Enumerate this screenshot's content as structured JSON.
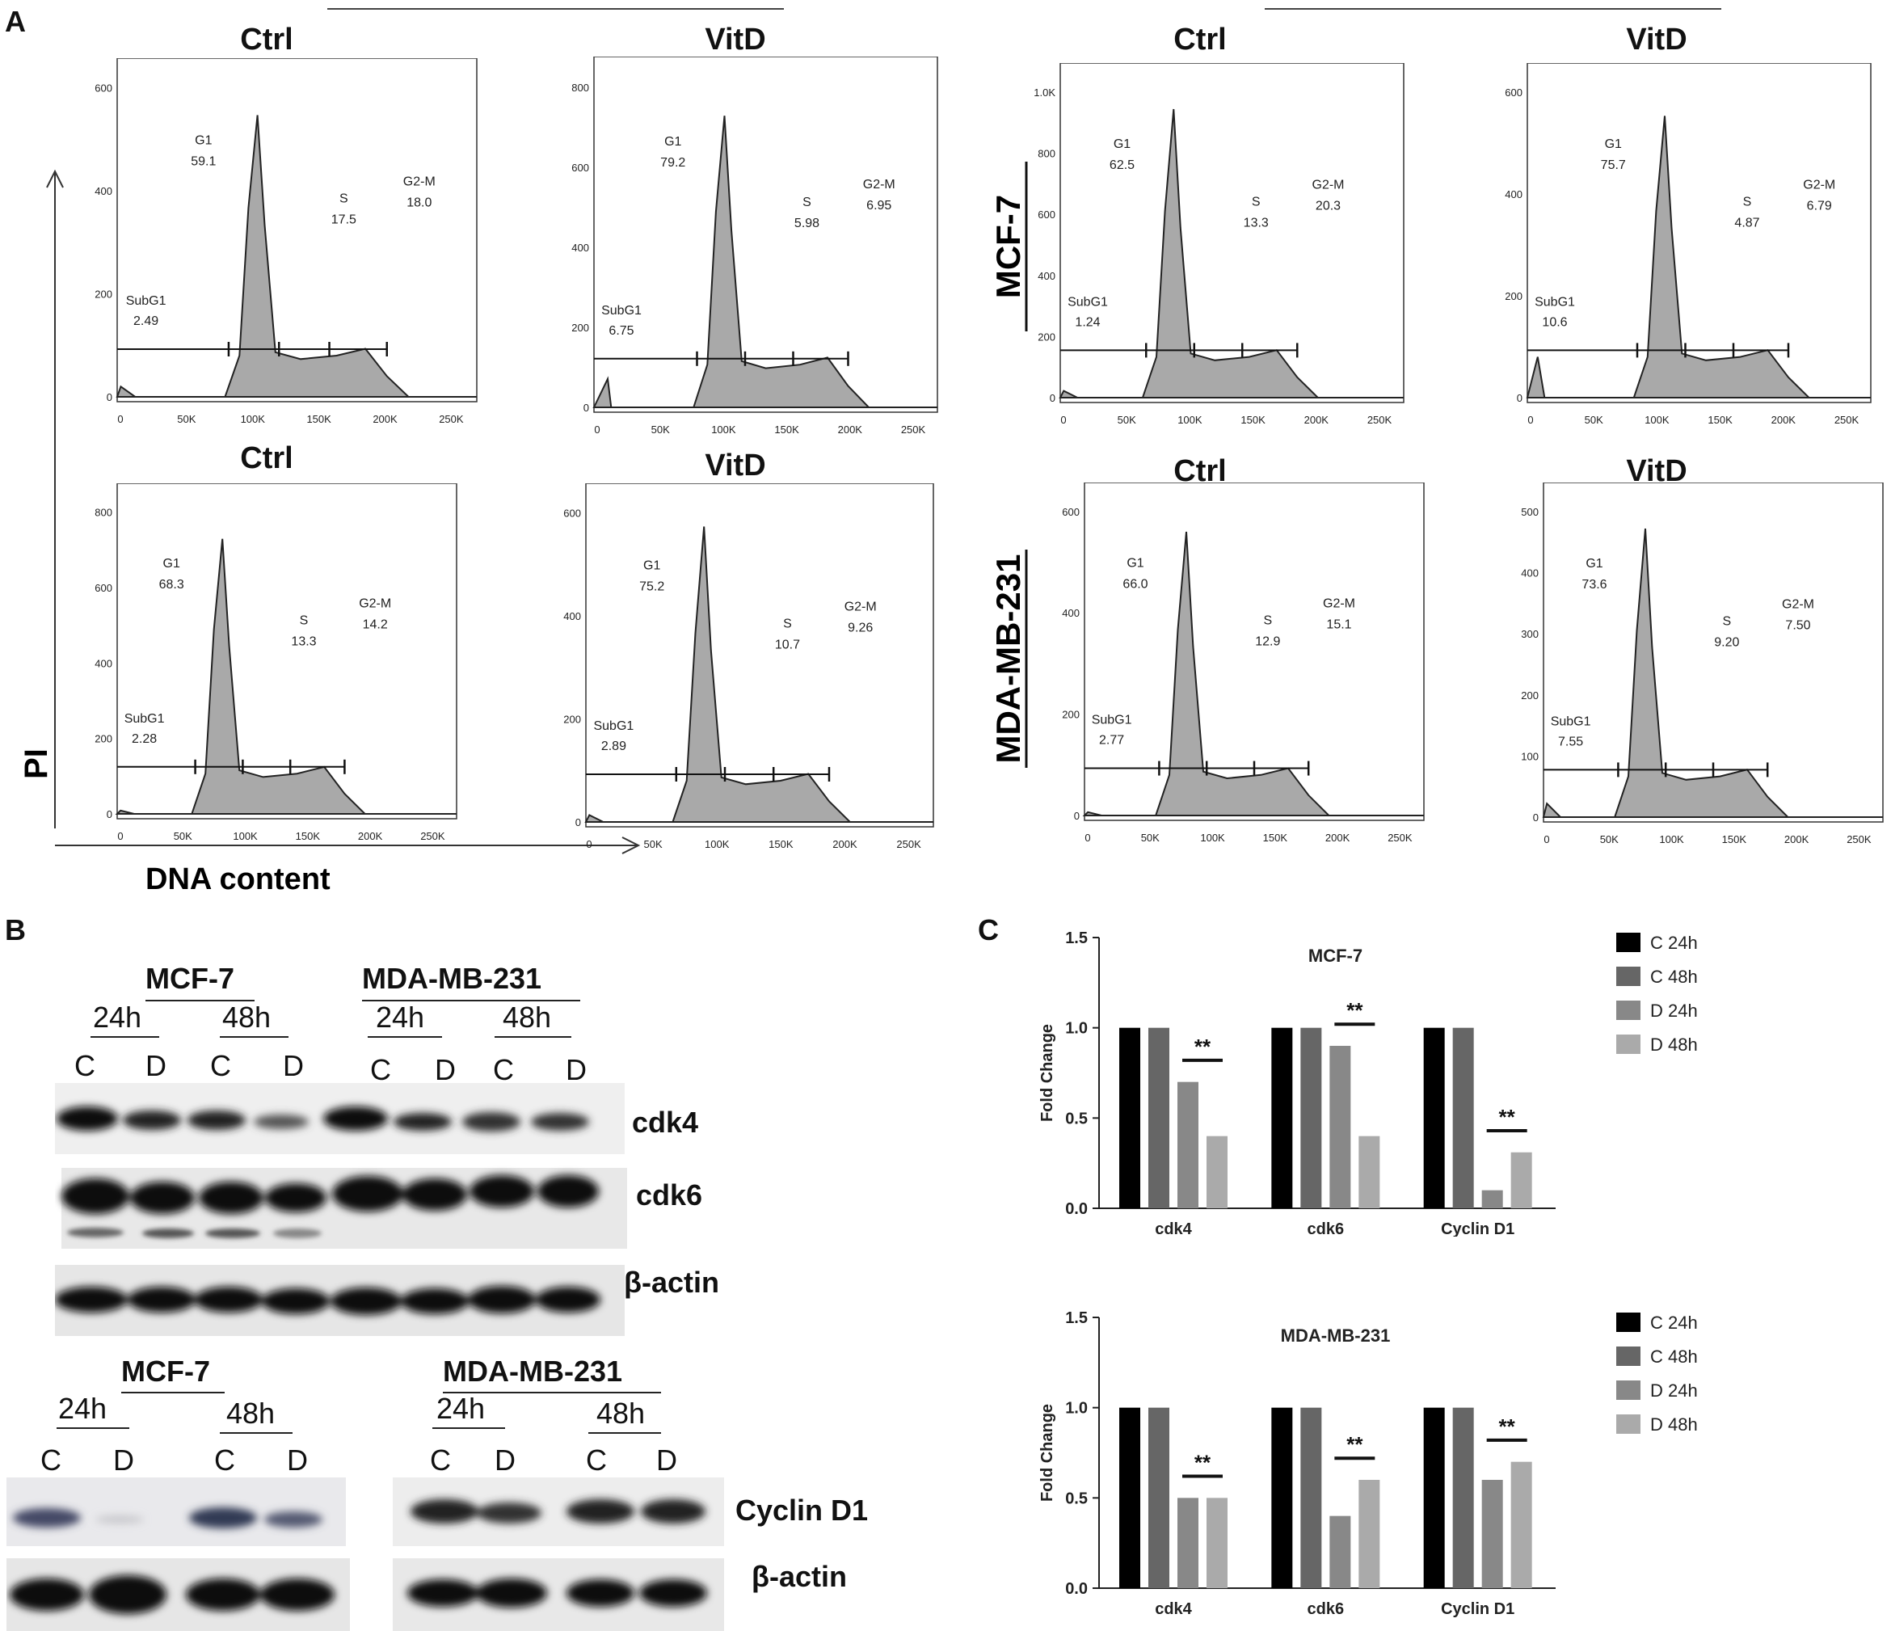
{
  "panel_labels": {
    "a": "A",
    "b": "B",
    "c": "C"
  },
  "histogram_axes": {
    "y_label": "PI",
    "x_label": "DNA content"
  },
  "row_labels": {
    "top": "MCF-7",
    "bottom": "MDA-MB-231"
  },
  "histograms": [
    {
      "title": "Ctrl",
      "yticks": [
        "0",
        "200",
        "400",
        "600"
      ],
      "subg1": "2.49",
      "g1": "59.1",
      "s": "17.5",
      "g2m": "18.0"
    },
    {
      "title": "VitD",
      "yticks": [
        "0",
        "200",
        "400",
        "600",
        "800"
      ],
      "subg1": "6.75",
      "g1": "79.2",
      "s": "5.98",
      "g2m": "6.95"
    },
    {
      "title": "Ctrl",
      "yticks": [
        "0",
        "200",
        "400",
        "600",
        "800",
        "1.0K"
      ],
      "subg1": "1.24",
      "g1": "62.5",
      "s": "13.3",
      "g2m": "20.3"
    },
    {
      "title": "VitD",
      "yticks": [
        "0",
        "200",
        "400",
        "600"
      ],
      "subg1": "10.6",
      "g1": "75.7",
      "s": "4.87",
      "g2m": "6.79"
    },
    {
      "title": "Ctrl",
      "yticks": [
        "0",
        "200",
        "400",
        "600",
        "800"
      ],
      "subg1": "2.28",
      "g1": "68.3",
      "s": "13.3",
      "g2m": "14.2"
    },
    {
      "title": "VitD",
      "yticks": [
        "0",
        "200",
        "400",
        "600"
      ],
      "subg1": "2.89",
      "g1": "75.2",
      "s": "10.7",
      "g2m": "9.26"
    },
    {
      "title": "Ctrl",
      "yticks": [
        "0",
        "200",
        "400",
        "600"
      ],
      "subg1": "2.77",
      "g1": "66.0",
      "s": "12.9",
      "g2m": "15.1"
    },
    {
      "title": "VitD",
      "yticks": [
        "0",
        "100",
        "200",
        "300",
        "400",
        "500"
      ],
      "subg1": "7.55",
      "g1": "73.6",
      "s": "9.20",
      "g2m": "7.50"
    }
  ],
  "histo_xticks": [
    "0",
    "50K",
    "100K",
    "150K",
    "200K",
    "250K"
  ],
  "gate_labels": {
    "subg1": "SubG1",
    "g1": "G1",
    "s": "S",
    "g2m": "G2-M"
  },
  "blots": {
    "top": {
      "group1": "MCF-7",
      "group2": "MDA-MB-231",
      "times": [
        "24h",
        "48h",
        "24h",
        "48h"
      ],
      "lanes": [
        "C",
        "D",
        "C",
        "D",
        "C",
        "D",
        "C",
        "D"
      ],
      "proteins": [
        "cdk4",
        "cdk6",
        "β-actin"
      ]
    },
    "bottom": {
      "group1": "MCF-7",
      "group2": "MDA-MB-231",
      "times": [
        "24h",
        "48h",
        "24h",
        "48h"
      ],
      "lanes": [
        "C",
        "D",
        "C",
        "D",
        "C",
        "D",
        "C",
        "D"
      ],
      "proteins": [
        "Cyclin D1",
        "β-actin"
      ]
    }
  },
  "chart_data": [
    {
      "type": "bar",
      "title": "MCF-7",
      "ylabel": "Fold Change",
      "ylim": [
        0,
        1.5
      ],
      "yticks": [
        "0.0",
        "0.5",
        "1.0",
        "1.5"
      ],
      "categories": [
        "cdk4",
        "cdk6",
        "Cyclin D1"
      ],
      "series": [
        {
          "name": "C 24h",
          "color": "#000000",
          "values": [
            1.0,
            1.0,
            1.0
          ]
        },
        {
          "name": "C 48h",
          "color": "#666666",
          "values": [
            1.0,
            1.0,
            1.0
          ]
        },
        {
          "name": "D 24h",
          "color": "#888888",
          "values": [
            0.7,
            0.9,
            0.1
          ]
        },
        {
          "name": "D 48h",
          "color": "#aaaaaa",
          "values": [
            0.4,
            0.4,
            0.31
          ]
        }
      ],
      "significance": [
        "**",
        "**",
        "**"
      ],
      "legend": "right"
    },
    {
      "type": "bar",
      "title": "MDA-MB-231",
      "ylabel": "Fold Change",
      "ylim": [
        0,
        1.5
      ],
      "yticks": [
        "0.0",
        "0.5",
        "1.0",
        "1.5"
      ],
      "categories": [
        "cdk4",
        "cdk6",
        "Cyclin D1"
      ],
      "series": [
        {
          "name": "C 24h",
          "color": "#000000",
          "values": [
            1.0,
            1.0,
            1.0
          ]
        },
        {
          "name": "C 48h",
          "color": "#666666",
          "values": [
            1.0,
            1.0,
            1.0
          ]
        },
        {
          "name": "D 24h",
          "color": "#888888",
          "values": [
            0.5,
            0.4,
            0.6
          ]
        },
        {
          "name": "D 48h",
          "color": "#aaaaaa",
          "values": [
            0.5,
            0.6,
            0.7
          ]
        }
      ],
      "significance": [
        "**",
        "**",
        "**"
      ],
      "legend": "right"
    }
  ]
}
